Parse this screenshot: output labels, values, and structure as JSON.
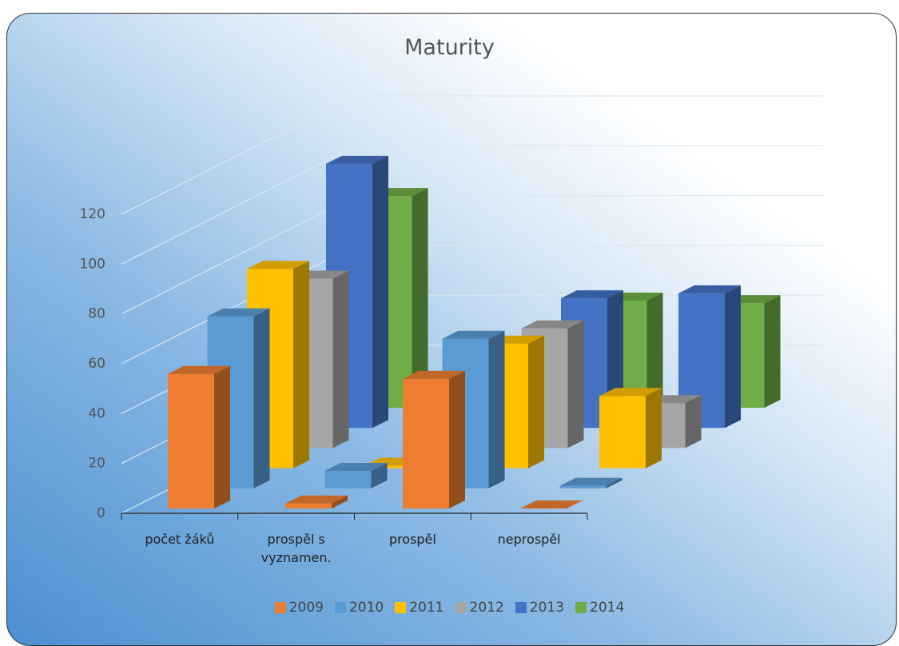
{
  "chart_data": {
    "type": "bar3d",
    "title": "Maturity",
    "categories": [
      "počet žáků",
      "prospěl s vyznamen.",
      "prospěl",
      "neprospěl"
    ],
    "series": [
      {
        "name": "2009",
        "color": "#ed7d31",
        "values": [
          54,
          2,
          52,
          0
        ]
      },
      {
        "name": "2010",
        "color": "#5b9bd5",
        "values": [
          69,
          7,
          60,
          1
        ]
      },
      {
        "name": "2011",
        "color": "#ffc000",
        "values": [
          80,
          1,
          50,
          29
        ]
      },
      {
        "name": "2012",
        "color": "#a5a5a5",
        "values": [
          68,
          5,
          48,
          18
        ]
      },
      {
        "name": "2013",
        "color": "#4472c4",
        "values": [
          106,
          10,
          52,
          54
        ]
      },
      {
        "name": "2014",
        "color": "#70ad47",
        "values": [
          85,
          10,
          43,
          42
        ]
      }
    ],
    "ylim": [
      0,
      120
    ],
    "yticks": [
      0,
      20,
      40,
      60,
      80,
      100,
      120
    ],
    "grid": true,
    "legend": "bottom"
  }
}
